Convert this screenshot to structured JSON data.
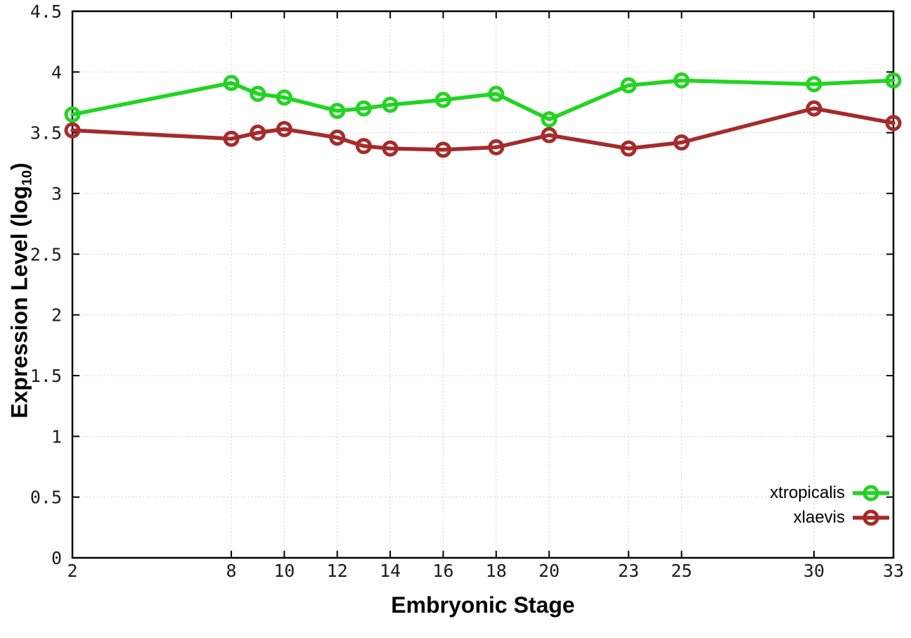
{
  "chart_data": {
    "type": "line",
    "title": "",
    "xlabel": "Embryonic Stage",
    "ylabel": "Expression Level (log10)",
    "ylabel_parts": {
      "prefix": "Expression Level (log",
      "subscript": "10",
      "suffix": ")"
    },
    "x": [
      2,
      8,
      9,
      10,
      12,
      13,
      14,
      16,
      18,
      20,
      23,
      25,
      30,
      33
    ],
    "series": [
      {
        "name": "xtropicalis",
        "color": "#22d422",
        "marker": "open-circle",
        "values": [
          3.65,
          3.91,
          3.82,
          3.79,
          3.68,
          3.7,
          3.73,
          3.77,
          3.82,
          3.61,
          3.89,
          3.93,
          3.9,
          3.93
        ]
      },
      {
        "name": "xlaevis",
        "color": "#a62b2b",
        "marker": "open-circle",
        "values": [
          3.52,
          3.45,
          3.5,
          3.53,
          3.46,
          3.39,
          3.37,
          3.36,
          3.38,
          3.48,
          3.37,
          3.42,
          3.7,
          3.58
        ]
      }
    ],
    "xlim": [
      2,
      33
    ],
    "ylim": [
      0,
      4.5
    ],
    "x_ticks": [
      2,
      8,
      10,
      12,
      14,
      16,
      18,
      20,
      23,
      25,
      30,
      33
    ],
    "x_tick_labels": [
      "2",
      "8",
      "10",
      "12",
      "14",
      "16",
      "18",
      "20",
      "23",
      "25",
      "30",
      "33"
    ],
    "y_ticks": [
      0,
      0.5,
      1,
      1.5,
      2,
      2.5,
      3,
      3.5,
      4,
      4.5
    ],
    "y_tick_labels": [
      "0",
      "0.5",
      "1",
      "1.5",
      "2",
      "2.5",
      "3",
      "3.5",
      "4",
      "4.5"
    ],
    "grid": true,
    "legend_position": "bottom-right"
  },
  "styles": {
    "grid_color": "#c4c4c4",
    "axis_color": "#000000",
    "tick_label_color": "#1c1c1c"
  }
}
